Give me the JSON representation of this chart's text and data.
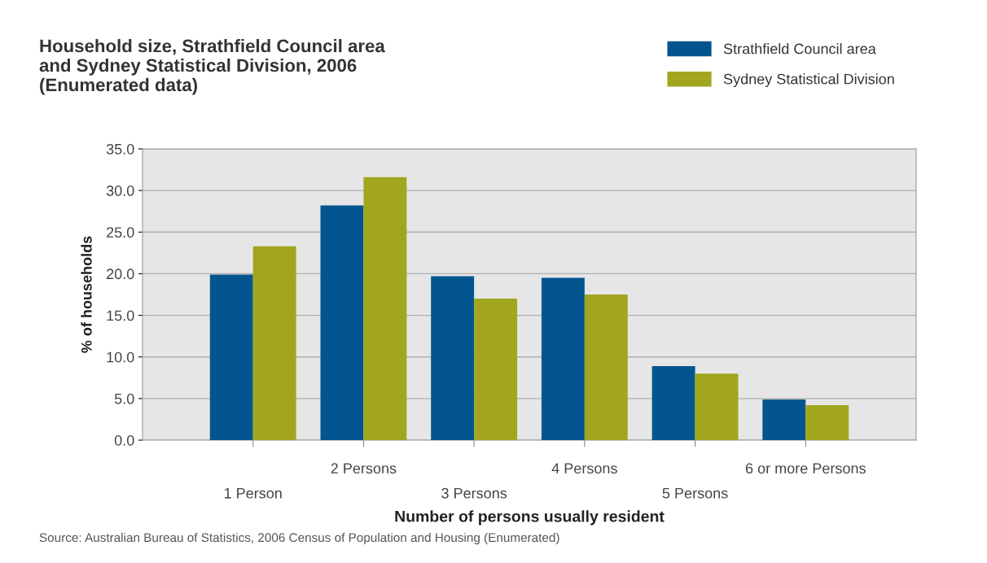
{
  "chart_data": {
    "type": "bar",
    "title": "Household size, Strathfield Council area\nand Sydney Statistical Division, 2006\n(Enumerated data)",
    "xlabel": "Number of persons usually resident",
    "ylabel": "% of households",
    "categories": [
      "1 Person",
      "2 Persons",
      "3 Persons",
      "4 Persons",
      "5 Persons",
      "6 or more Persons"
    ],
    "series": [
      {
        "name": "Strathfield Council area",
        "color": "#03558f",
        "values": [
          19.9,
          28.2,
          19.7,
          19.5,
          8.9,
          4.9
        ]
      },
      {
        "name": "Sydney Statistical Division",
        "color": "#a1a61e",
        "values": [
          23.3,
          31.6,
          17.0,
          17.5,
          8.0,
          4.2
        ]
      }
    ],
    "ylim": [
      0,
      35
    ],
    "yticks": [
      {
        "value": 0,
        "label": "0.0"
      },
      {
        "value": 5,
        "label": "5.0"
      },
      {
        "value": 10,
        "label": "10.0"
      },
      {
        "value": 15,
        "label": "15.0"
      },
      {
        "value": 20,
        "label": "20.0"
      },
      {
        "value": 25,
        "label": "25.0"
      },
      {
        "value": 30,
        "label": "30.0"
      },
      {
        "value": 35,
        "label": "35.0"
      }
    ],
    "grid": "y",
    "legend": "top right",
    "annotations": [
      "Source: Australian Bureau of Statistics, 2006 Census of Population and Housing (Enumerated)"
    ]
  }
}
